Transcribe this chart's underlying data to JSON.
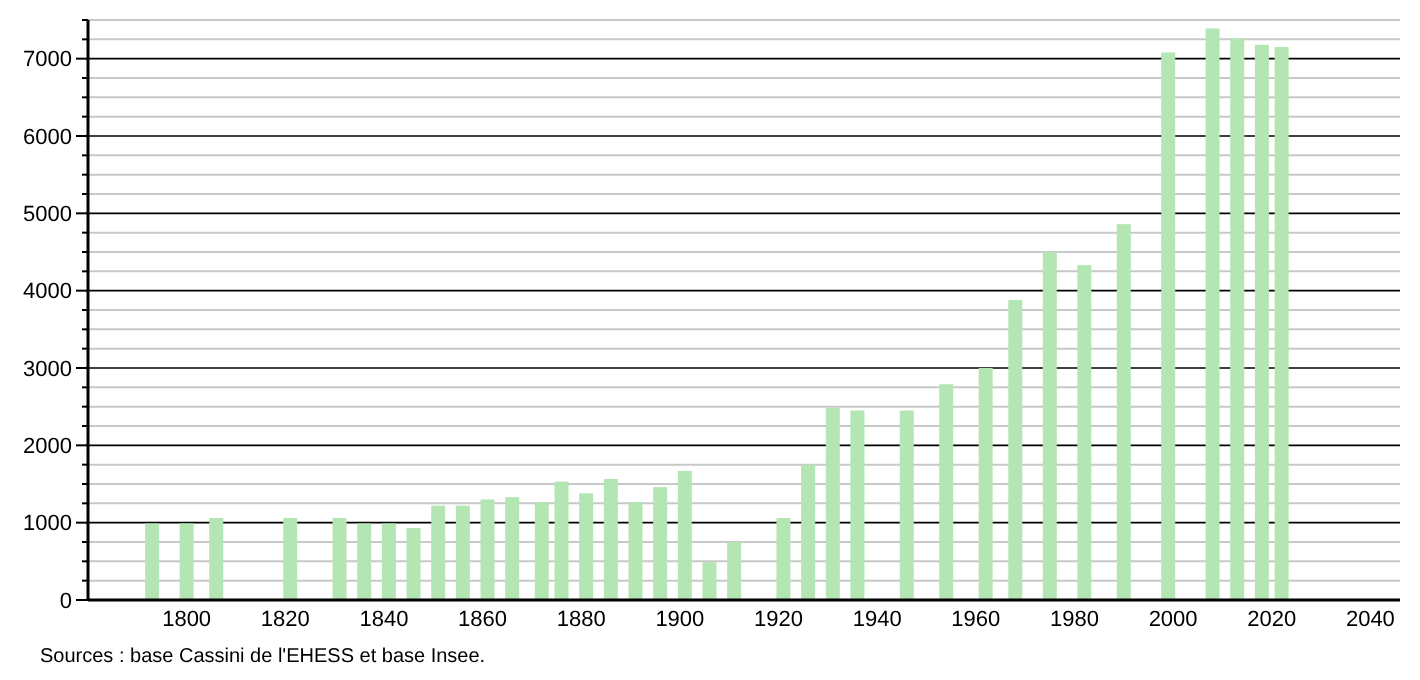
{
  "chart_data": {
    "type": "bar",
    "x": [
      1793,
      1800,
      1806,
      1821,
      1831,
      1836,
      1841,
      1846,
      1851,
      1856,
      1861,
      1866,
      1872,
      1876,
      1881,
      1886,
      1891,
      1896,
      1901,
      1906,
      1911,
      1921,
      1926,
      1931,
      1936,
      1946,
      1954,
      1962,
      1968,
      1975,
      1982,
      1990,
      1999,
      2008,
      2013,
      2018,
      2022
    ],
    "values": [
      990,
      990,
      1060,
      1060,
      1060,
      990,
      990,
      930,
      1220,
      1220,
      1300,
      1330,
      1265,
      1530,
      1380,
      1565,
      1265,
      1460,
      1670,
      490,
      750,
      1060,
      1750,
      2490,
      2450,
      2450,
      2790,
      3000,
      3880,
      4500,
      4330,
      4860,
      7080,
      7390,
      7260,
      7180,
      7150
    ],
    "color": "#b3e6b3",
    "xlim": [
      1780,
      2046
    ],
    "xticks": [
      1800,
      1820,
      1840,
      1860,
      1880,
      1900,
      1920,
      1940,
      1960,
      1980,
      2000,
      2020,
      2040
    ],
    "ylim": [
      0,
      7500
    ],
    "yticks": [
      0,
      {
        "value": 250,
        "label": null
      },
      {
        "value": 500,
        "label": null
      },
      {
        "value": 750,
        "label": null
      },
      1000,
      {
        "value": 1250,
        "label": null
      },
      {
        "value": 1500,
        "label": null
      },
      {
        "value": 1750,
        "label": null
      },
      2000,
      {
        "value": 2250,
        "label": null
      },
      {
        "value": 2500,
        "label": null
      },
      {
        "value": 2750,
        "label": null
      },
      3000,
      {
        "value": 3250,
        "label": null
      },
      {
        "value": 3500,
        "label": null
      },
      {
        "value": 3750,
        "label": null
      },
      4000,
      {
        "value": 4250,
        "label": null
      },
      {
        "value": 4500,
        "label": null
      },
      {
        "value": 4750,
        "label": null
      },
      5000,
      {
        "value": 5250,
        "label": null
      },
      {
        "value": 5500,
        "label": null
      },
      {
        "value": 5750,
        "label": null
      },
      6000,
      {
        "value": 6250,
        "label": null
      },
      {
        "value": 6500,
        "label": null
      },
      {
        "value": 6750,
        "label": null
      },
      7000,
      {
        "value": 7250,
        "label": null
      },
      {
        "value": 7500,
        "label": null
      }
    ],
    "grid": "y",
    "annotations": [
      "Sources : base Cassini de l'EHESS et base Insee."
    ]
  }
}
